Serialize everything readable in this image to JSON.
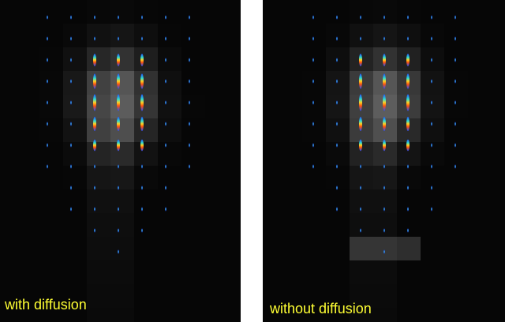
{
  "panels": [
    {
      "label": "with diffusion"
    },
    {
      "label": "without diffusion"
    }
  ]
}
